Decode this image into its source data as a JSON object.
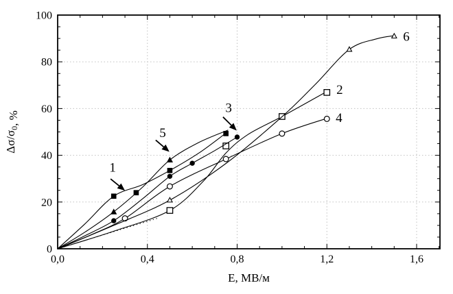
{
  "figure": {
    "background": "#ffffff",
    "axis_color": "#000000",
    "grid_color": "#c0c0c0",
    "curve_color": "#000000"
  },
  "chart_data": {
    "type": "line",
    "title": "",
    "xlabel": "E, МВ/м",
    "ylabel": "Δσ/σ₀, %",
    "ylabel_parts": [
      {
        "t": "Δσ/σ",
        "sub": false
      },
      {
        "t": "0",
        "sub": true
      },
      {
        "t": ", %",
        "sub": false
      }
    ],
    "xlim": [
      0,
      1.704
    ],
    "ylim": [
      0,
      100
    ],
    "grid": {
      "style": "dotted",
      "x_values": [
        0.4,
        0.8,
        1.2,
        1.6
      ],
      "y_values": [
        20,
        40,
        60,
        80
      ]
    },
    "x_ticks": [
      {
        "label": "0,0",
        "value": 0
      },
      {
        "label": "0,4",
        "value": 0.4
      },
      {
        "label": "0,8",
        "value": 0.8
      },
      {
        "label": "1,2",
        "value": 1.2
      },
      {
        "label": "1,6",
        "value": 1.6
      }
    ],
    "y_ticks": [
      {
        "label": "0",
        "value": 0
      },
      {
        "label": "20",
        "value": 20
      },
      {
        "label": "40",
        "value": 40
      },
      {
        "label": "60",
        "value": 60
      },
      {
        "label": "80",
        "value": 80
      },
      {
        "label": "100",
        "value": 100
      }
    ],
    "x_minor_step": 0.1,
    "y_minor_step": 5,
    "legend_position": "none",
    "series": [
      {
        "name": "1",
        "marker": "filled-square",
        "points": [
          [
            0.25,
            22.5
          ],
          [
            0.35,
            24
          ],
          [
            0.5,
            33.5
          ],
          [
            0.75,
            49.3
          ]
        ],
        "line": [
          [
            0,
            0
          ],
          [
            0.12,
            10.5
          ],
          [
            0.25,
            22.5
          ],
          [
            0.38,
            27.5
          ],
          [
            0.5,
            33.5
          ],
          [
            0.63,
            41
          ],
          [
            0.75,
            49.5
          ]
        ],
        "label_pos": [
          0.245,
          34.8
        ],
        "arrow": {
          "from": [
            0.236,
            29.9
          ],
          "to": [
            0.3,
            24.9
          ]
        }
      },
      {
        "name": "2",
        "marker": "open-square",
        "points": [
          [
            0.5,
            16.4
          ],
          [
            0.75,
            44
          ],
          [
            1.0,
            56.6
          ],
          [
            1.2,
            66.9
          ]
        ],
        "line": [
          [
            0,
            0
          ],
          [
            0.25,
            7.5
          ],
          [
            0.5,
            16.4
          ],
          [
            0.65,
            29
          ],
          [
            0.75,
            41
          ],
          [
            0.85,
            49
          ],
          [
            1.0,
            56.6
          ],
          [
            1.2,
            67.3
          ]
        ],
        "label_pos": [
          1.257,
          68.0
        ],
        "arrow": null
      },
      {
        "name": "3",
        "marker": "filled-circle",
        "points": [
          [
            0.25,
            12
          ],
          [
            0.5,
            31
          ],
          [
            0.6,
            36.6
          ],
          [
            0.8,
            47.8
          ]
        ],
        "line": [
          [
            0,
            0
          ],
          [
            0.12,
            5.5
          ],
          [
            0.25,
            12
          ],
          [
            0.38,
            21.5
          ],
          [
            0.5,
            31
          ],
          [
            0.6,
            36.6
          ],
          [
            0.7,
            42
          ],
          [
            0.8,
            47.8
          ]
        ],
        "label_pos": [
          0.762,
          60.3
        ],
        "arrow": {
          "from": [
            0.737,
            56.4
          ],
          "to": [
            0.798,
            50.6
          ]
        }
      },
      {
        "name": "4",
        "marker": "open-circle",
        "points": [
          [
            0.3,
            13
          ],
          [
            0.5,
            26.7
          ],
          [
            0.75,
            38.4
          ],
          [
            1.0,
            49.3
          ],
          [
            1.2,
            55.6
          ]
        ],
        "line": [
          [
            0,
            0
          ],
          [
            0.15,
            6
          ],
          [
            0.3,
            13
          ],
          [
            0.5,
            26.7
          ],
          [
            0.75,
            38.4
          ],
          [
            1.0,
            49.3
          ],
          [
            1.2,
            55.8
          ]
        ],
        "label_pos": [
          1.254,
          56.0
        ],
        "arrow": null
      },
      {
        "name": "5",
        "marker": "filled-triangle",
        "points": [
          [
            0.25,
            15.8
          ],
          [
            0.5,
            38
          ]
        ],
        "line": [
          [
            0,
            0
          ],
          [
            0.12,
            7
          ],
          [
            0.25,
            15.8
          ],
          [
            0.38,
            26.5
          ],
          [
            0.5,
            38
          ],
          [
            0.63,
            45.5
          ],
          [
            0.76,
            50.8
          ]
        ],
        "label_pos": [
          0.468,
          49.5
        ],
        "arrow": {
          "from": [
            0.437,
            46.5
          ],
          "to": [
            0.498,
            41.5
          ]
        }
      },
      {
        "name": "6",
        "marker": "open-triangle",
        "points": [
          [
            0.5,
            20.8
          ],
          [
            1.3,
            85.3
          ],
          [
            1.5,
            91
          ]
        ],
        "line": [
          [
            0,
            0
          ],
          [
            0.25,
            10
          ],
          [
            0.5,
            20.8
          ],
          [
            0.75,
            36.5
          ],
          [
            1.0,
            56.5
          ],
          [
            1.15,
            70.5
          ],
          [
            1.3,
            85.3
          ],
          [
            1.42,
            89.8
          ],
          [
            1.5,
            91.2
          ]
        ],
        "label_pos": [
          1.554,
          90.8
        ],
        "arrow": null
      }
    ],
    "dotted_guide": [
      [
        0,
        0
      ],
      [
        0.45,
        13.2
      ]
    ]
  }
}
